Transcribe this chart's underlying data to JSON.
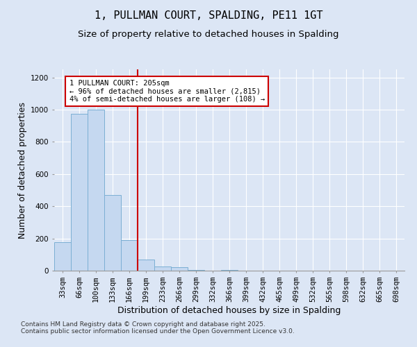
{
  "title": "1, PULLMAN COURT, SPALDING, PE11 1GT",
  "subtitle": "Size of property relative to detached houses in Spalding",
  "xlabel": "Distribution of detached houses by size in Spalding",
  "ylabel": "Number of detached properties",
  "categories": [
    "33sqm",
    "66sqm",
    "100sqm",
    "133sqm",
    "166sqm",
    "199sqm",
    "233sqm",
    "266sqm",
    "299sqm",
    "332sqm",
    "366sqm",
    "399sqm",
    "432sqm",
    "465sqm",
    "499sqm",
    "532sqm",
    "565sqm",
    "598sqm",
    "632sqm",
    "665sqm",
    "698sqm"
  ],
  "values": [
    175,
    975,
    1000,
    470,
    190,
    70,
    25,
    20,
    5,
    0,
    5,
    0,
    0,
    0,
    0,
    0,
    0,
    0,
    0,
    0,
    0
  ],
  "bar_color": "#c5d8f0",
  "bar_edge_color": "#7bafd4",
  "vline_index": 5,
  "vline_color": "#cc0000",
  "annotation_text": "1 PULLMAN COURT: 205sqm\n← 96% of detached houses are smaller (2,815)\n4% of semi-detached houses are larger (108) →",
  "annotation_box_color": "#ffffff",
  "annotation_box_edge": "#cc0000",
  "background_color": "#dce6f5",
  "plot_bg_color": "#dce6f5",
  "ylim": [
    0,
    1250
  ],
  "yticks": [
    0,
    200,
    400,
    600,
    800,
    1000,
    1200
  ],
  "footer_line1": "Contains HM Land Registry data © Crown copyright and database right 2025.",
  "footer_line2": "Contains public sector information licensed under the Open Government Licence v3.0.",
  "title_fontsize": 11,
  "subtitle_fontsize": 9.5,
  "tick_fontsize": 7.5,
  "label_fontsize": 9,
  "footer_fontsize": 6.5
}
